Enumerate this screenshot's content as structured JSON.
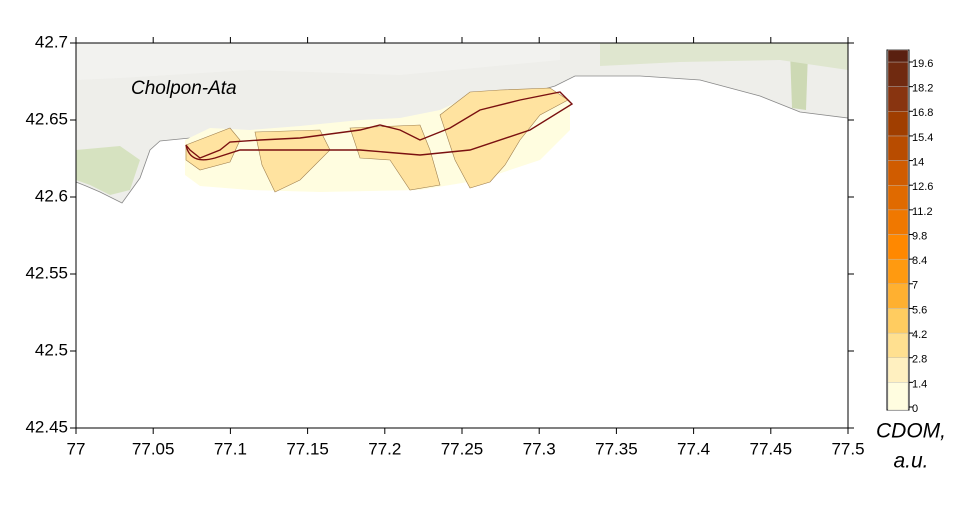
{
  "map": {
    "place_label": "Cholpon-Ata",
    "xlim": [
      77,
      77.5
    ],
    "ylim": [
      42.45,
      42.7
    ],
    "xticks": [
      77,
      77.05,
      77.1,
      77.15,
      77.2,
      77.25,
      77.3,
      77.35,
      77.4,
      77.45,
      77.5
    ],
    "yticks": [
      42.45,
      42.5,
      42.55,
      42.6,
      42.65,
      42.7
    ],
    "colorbar": {
      "title": [
        "CDOM,",
        "a.u."
      ],
      "ticks": [
        0,
        1.4,
        2.8,
        4.2,
        5.6,
        7,
        8.4,
        9.8,
        11.2,
        12.6,
        14,
        15.4,
        16.8,
        18.2,
        19.6
      ],
      "colors": [
        "#fffde0",
        "#fff0c0",
        "#ffe090",
        "#ffcc60",
        "#ffb030",
        "#ff9a10",
        "#ff8800",
        "#f07800",
        "#e06a00",
        "#d05c00",
        "#b84c00",
        "#a03e00",
        "#883410",
        "#702a10",
        "#5a2010"
      ]
    }
  }
}
